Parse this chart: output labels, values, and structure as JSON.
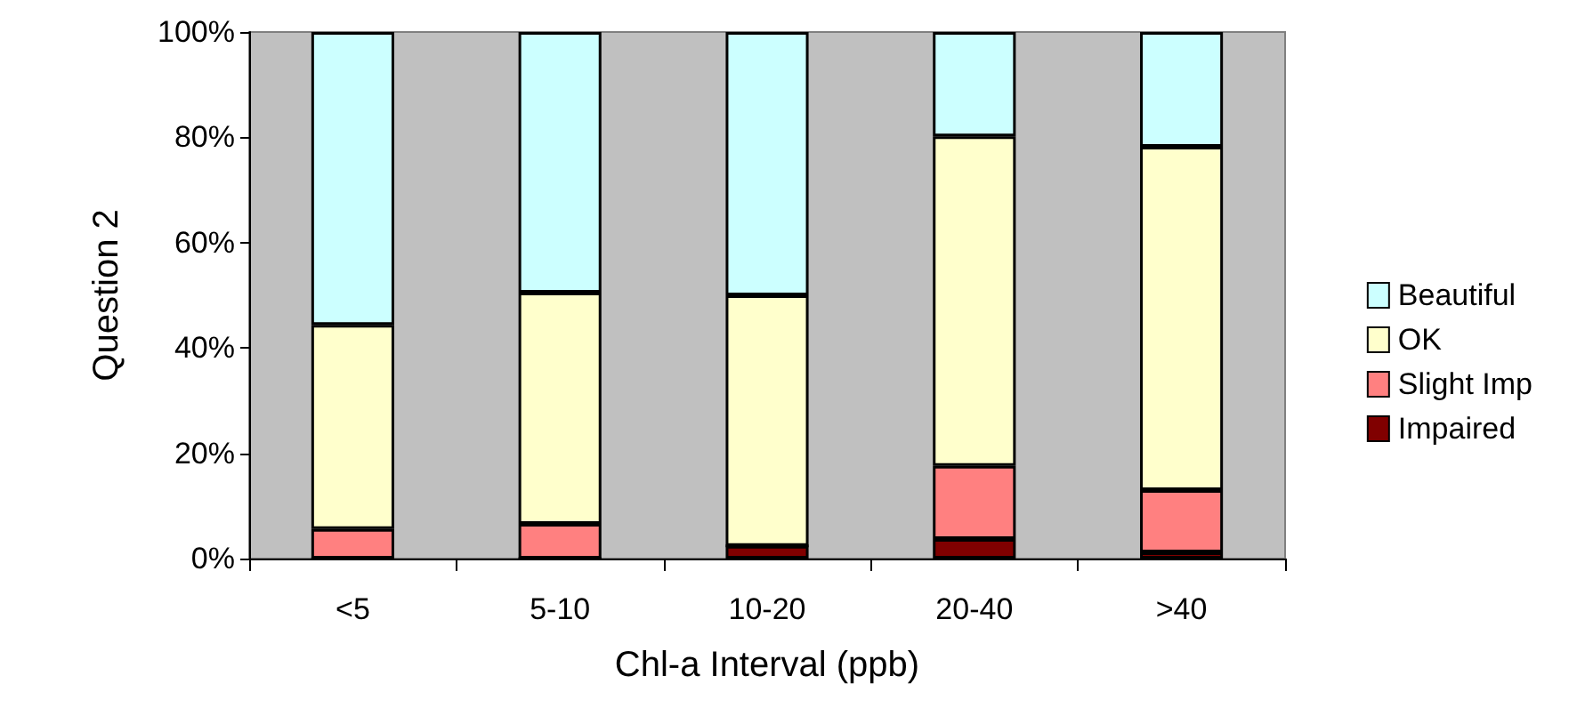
{
  "chart_data": {
    "type": "bar",
    "stacked": true,
    "xlabel": "Chl-a Interval (ppb)",
    "ylabel": "Question 2",
    "categories": [
      "<5",
      "5-10",
      "10-20",
      "20-40",
      ">40"
    ],
    "series": [
      {
        "name": "Impaired",
        "color": "#800000",
        "values": [
          0,
          0,
          2.4,
          3.7,
          1.2
        ]
      },
      {
        "name": "Slight Imp",
        "color": "#ff8080",
        "values": [
          5.6,
          6.6,
          0,
          13.9,
          11.8
        ]
      },
      {
        "name": "OK",
        "color": "#ffffcc",
        "values": [
          38.8,
          43.9,
          47.6,
          62.6,
          65.2
        ]
      },
      {
        "name": "Beautiful",
        "color": "#ccffff",
        "values": [
          55.6,
          49.5,
          50,
          19.8,
          21.8
        ]
      }
    ],
    "ylim": [
      0,
      100
    ],
    "yticks": [
      {
        "value": 0,
        "label": "0%"
      },
      {
        "value": 20,
        "label": "20%"
      },
      {
        "value": 40,
        "label": "40%"
      },
      {
        "value": 60,
        "label": "60%"
      },
      {
        "value": 80,
        "label": "80%"
      },
      {
        "value": 100,
        "label": "100%"
      }
    ],
    "grid": false,
    "legend": "right"
  }
}
